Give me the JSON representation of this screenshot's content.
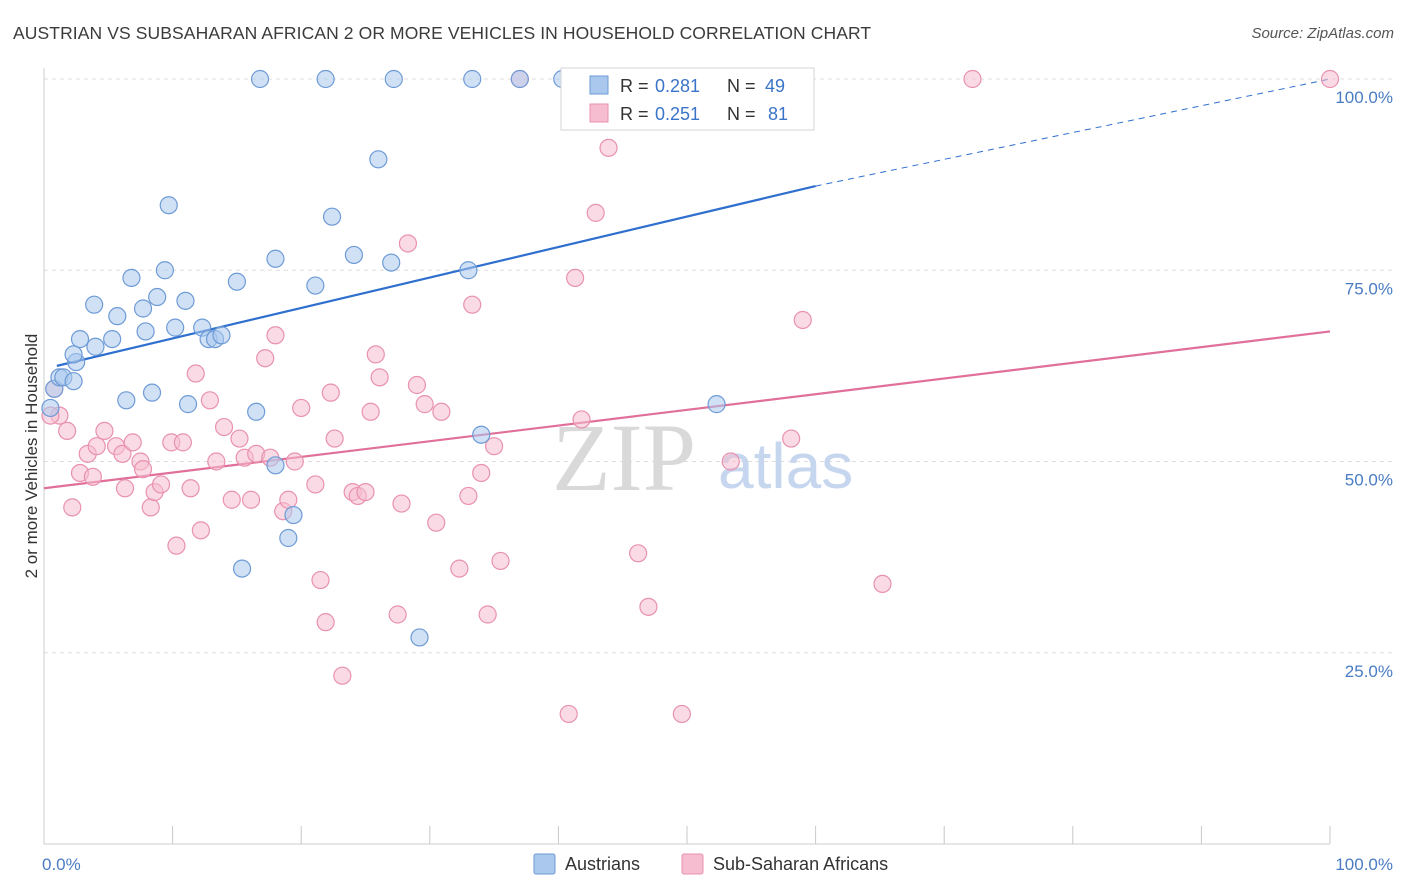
{
  "header": {
    "title": "AUSTRIAN VS SUBSAHARAN AFRICAN 2 OR MORE VEHICLES IN HOUSEHOLD CORRELATION CHART",
    "source": "Source: ZipAtlas.com"
  },
  "watermark": {
    "zip": "ZIP",
    "atlas": "atlas"
  },
  "colors": {
    "austrians_fill": "#aac8ee",
    "austrians_stroke": "#6e9bd6",
    "austrians_line": "#2f6fce",
    "africans_fill": "#f6bdd0",
    "africans_stroke": "#e891b0",
    "africans_line": "#e0709a",
    "grid": "#dddddd",
    "tick_label": "#4a7cc4"
  },
  "legend_box": {
    "rows": [
      {
        "r_label": "R =",
        "r_value": "0.281",
        "n_label": "N =",
        "n_value": "49"
      },
      {
        "r_label": "R =",
        "r_value": "0.251",
        "n_label": "N =",
        "n_value": "81"
      }
    ]
  },
  "bottom_legend": {
    "items": [
      "Austrians",
      "Sub-Saharan Africans"
    ]
  },
  "chart_data": {
    "type": "scatter",
    "xlabel": "",
    "ylabel": "2 or more Vehicles in Household",
    "xlim": [
      0,
      100
    ],
    "ylim": [
      0,
      100
    ],
    "x_tick_labels": [
      {
        "value": 0,
        "label": "0.0%"
      },
      {
        "value": 100,
        "label": "100.0%"
      }
    ],
    "x_minor_ticks": [
      0,
      10,
      20,
      30,
      40,
      50,
      60,
      70,
      80,
      90,
      100
    ],
    "y_ticks": [
      {
        "value": 25,
        "label": "25.0%"
      },
      {
        "value": 50,
        "label": "50.0%"
      },
      {
        "value": 75,
        "label": "75.0%"
      },
      {
        "value": 100,
        "label": "100.0%"
      }
    ],
    "grid": true,
    "legend_position": "top-center",
    "series": [
      {
        "name": "Austrians",
        "color_key": "austrians",
        "points": [
          [
            0.5,
            57.0
          ],
          [
            0.8,
            59.5
          ],
          [
            1.2,
            61.0
          ],
          [
            1.5,
            61.0
          ],
          [
            2.3,
            60.5
          ],
          [
            2.5,
            63.0
          ],
          [
            2.3,
            64.0
          ],
          [
            2.8,
            66.0
          ],
          [
            4.0,
            65.0
          ],
          [
            5.3,
            66.0
          ],
          [
            5.7,
            69.0
          ],
          [
            3.9,
            70.5
          ],
          [
            6.4,
            58.0
          ],
          [
            6.8,
            74.0
          ],
          [
            7.7,
            70.0
          ],
          [
            7.9,
            67.0
          ],
          [
            8.4,
            59.0
          ],
          [
            8.8,
            71.5
          ],
          [
            9.4,
            75.0
          ],
          [
            9.7,
            83.5
          ],
          [
            10.2,
            67.5
          ],
          [
            11.0,
            71.0
          ],
          [
            11.2,
            57.5
          ],
          [
            12.3,
            67.5
          ],
          [
            12.8,
            66.0
          ],
          [
            13.3,
            66.0
          ],
          [
            13.8,
            66.5
          ],
          [
            15.0,
            73.5
          ],
          [
            15.4,
            36.0
          ],
          [
            16.5,
            56.5
          ],
          [
            16.8,
            100.0
          ],
          [
            18.0,
            76.5
          ],
          [
            18.0,
            49.5
          ],
          [
            19.0,
            40.0
          ],
          [
            19.4,
            43.0
          ],
          [
            21.1,
            73.0
          ],
          [
            21.9,
            100.0
          ],
          [
            22.4,
            82.0
          ],
          [
            24.1,
            77.0
          ],
          [
            26.0,
            89.5
          ],
          [
            27.0,
            76.0
          ],
          [
            27.2,
            100.0
          ],
          [
            29.2,
            27.0
          ],
          [
            33.3,
            100.0
          ],
          [
            33.0,
            75.0
          ],
          [
            34.0,
            53.5
          ],
          [
            37.0,
            100.0
          ],
          [
            40.3,
            100.0
          ],
          [
            52.3,
            57.5
          ]
        ],
        "trend": {
          "x0": 1.0,
          "y0": 62.5,
          "x1": 60.0,
          "y1": 86.0,
          "dash_x1": 100.0,
          "dash_y1": 100.0
        }
      },
      {
        "name": "Sub-Saharan Africans",
        "color_key": "africans",
        "points": [
          [
            0.8,
            59.5
          ],
          [
            1.2,
            56.0
          ],
          [
            1.8,
            54.0
          ],
          [
            2.2,
            44.0
          ],
          [
            2.8,
            48.5
          ],
          [
            3.4,
            51.0
          ],
          [
            3.8,
            48.0
          ],
          [
            4.1,
            52.0
          ],
          [
            4.7,
            54.0
          ],
          [
            5.6,
            52.0
          ],
          [
            6.1,
            51.0
          ],
          [
            6.3,
            46.5
          ],
          [
            6.9,
            52.5
          ],
          [
            7.5,
            50.0
          ],
          [
            7.7,
            49.0
          ],
          [
            8.3,
            44.0
          ],
          [
            8.6,
            46.0
          ],
          [
            9.1,
            47.0
          ],
          [
            9.9,
            52.5
          ],
          [
            10.3,
            39.0
          ],
          [
            10.8,
            52.5
          ],
          [
            11.4,
            46.5
          ],
          [
            11.8,
            61.5
          ],
          [
            12.2,
            41.0
          ],
          [
            12.9,
            58.0
          ],
          [
            13.4,
            50.0
          ],
          [
            14.0,
            54.5
          ],
          [
            14.6,
            45.0
          ],
          [
            15.2,
            53.0
          ],
          [
            15.6,
            50.5
          ],
          [
            16.1,
            45.0
          ],
          [
            16.5,
            51.0
          ],
          [
            17.2,
            63.5
          ],
          [
            17.6,
            50.5
          ],
          [
            18.0,
            66.5
          ],
          [
            18.6,
            43.5
          ],
          [
            19.0,
            45.0
          ],
          [
            19.5,
            50.0
          ],
          [
            20.0,
            57.0
          ],
          [
            21.1,
            47.0
          ],
          [
            21.5,
            34.5
          ],
          [
            21.9,
            29.0
          ],
          [
            22.3,
            59.0
          ],
          [
            22.6,
            53.0
          ],
          [
            23.2,
            22.0
          ],
          [
            24.0,
            46.0
          ],
          [
            24.4,
            45.5
          ],
          [
            25.0,
            46.0
          ],
          [
            25.4,
            56.5
          ],
          [
            25.8,
            64.0
          ],
          [
            26.1,
            61.0
          ],
          [
            27.5,
            30.0
          ],
          [
            27.8,
            44.5
          ],
          [
            28.3,
            78.5
          ],
          [
            29.0,
            60.0
          ],
          [
            29.6,
            57.5
          ],
          [
            30.5,
            42.0
          ],
          [
            30.9,
            56.5
          ],
          [
            32.3,
            36.0
          ],
          [
            33.0,
            45.5
          ],
          [
            33.3,
            70.5
          ],
          [
            34.0,
            48.5
          ],
          [
            34.5,
            30.0
          ],
          [
            35.0,
            52.0
          ],
          [
            35.5,
            37.0
          ],
          [
            37.0,
            100.0
          ],
          [
            40.8,
            17.0
          ],
          [
            41.3,
            74.0
          ],
          [
            41.8,
            55.5
          ],
          [
            42.9,
            82.5
          ],
          [
            43.9,
            91.0
          ],
          [
            46.2,
            38.0
          ],
          [
            47.0,
            31.0
          ],
          [
            49.6,
            17.0
          ],
          [
            53.4,
            50.0
          ],
          [
            58.1,
            53.0
          ],
          [
            59.0,
            68.5
          ],
          [
            65.2,
            34.0
          ],
          [
            72.2,
            100.0
          ],
          [
            100.0,
            100.0
          ],
          [
            0.5,
            56.0
          ]
        ],
        "trend": {
          "x0": 0.0,
          "y0": 46.5,
          "x1": 100.0,
          "y1": 67.0
        }
      }
    ]
  }
}
